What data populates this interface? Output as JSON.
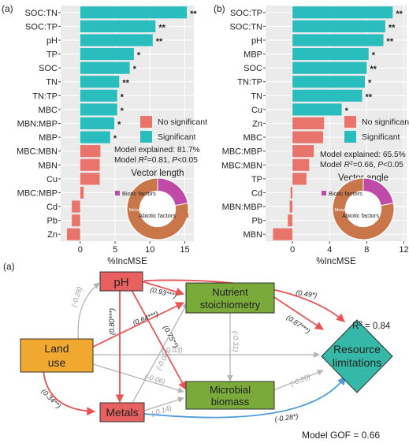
{
  "chart_data": [
    {
      "type": "bar",
      "panel_label": "(a)",
      "orientation": "horizontal",
      "categories": [
        "SOC:TN",
        "SOC:TP",
        "pH",
        "TP",
        "SOC",
        "TN",
        "TN:TP",
        "MBC",
        "MBN:MBP",
        "MBP",
        "MBC:MBN",
        "MBN",
        "Cu",
        "MBC:MBP",
        "Cd",
        "Pb",
        "Zn"
      ],
      "values": [
        15.3,
        10.8,
        10.4,
        7.7,
        7.1,
        5.6,
        5.3,
        5.3,
        4.9,
        4.3,
        2.9,
        2.8,
        2.8,
        0.5,
        -1.2,
        -1.2,
        -1.9
      ],
      "significance": [
        "**",
        "**",
        "**",
        "*",
        "*",
        "**",
        "*",
        "*",
        "*",
        "*",
        "",
        "",
        "",
        "",
        "",
        "",
        ""
      ],
      "xlabel": "%IncMSE",
      "xlim": [
        -2.8,
        16.3
      ],
      "xticks": [
        0,
        5,
        10,
        15
      ],
      "legend": {
        "items": [
          {
            "label": "No significant",
            "color": "#e8746c"
          },
          {
            "label": "Significant",
            "color": "#29bdbd"
          }
        ]
      },
      "annotation": {
        "line1": "Model explained: 81.7%",
        "line2_prefix": "Model ",
        "line2_r": "R",
        "line2_sup": "2",
        "line2_rest": "=0.81, ",
        "line2_p": "P",
        "line2_end": "<0.05"
      },
      "donut": {
        "title": "Vector length",
        "slices": [
          {
            "label": "Biotic factors",
            "value": 0.22,
            "color": "#c04aa8"
          },
          {
            "label": "Abiotic factors",
            "value": 0.78,
            "color": "#c8764a"
          }
        ],
        "inner_label": "Metals"
      },
      "colors": {
        "significant": "#29bdbd",
        "not_significant": "#e8746c"
      }
    },
    {
      "type": "bar",
      "panel_label": "(b)",
      "orientation": "horizontal",
      "categories": [
        "SOC:TP",
        "SOC:TN",
        "pH",
        "MBP",
        "SOC",
        "TN:TP",
        "TN",
        "Cu",
        "Zn",
        "MBC",
        "MBC:MBP",
        "MBC:MBN",
        "TP",
        "Cd",
        "MBN:MBP",
        "Pb",
        "MBN"
      ],
      "values": [
        10.8,
        10.0,
        9.8,
        8.2,
        8.0,
        7.8,
        7.5,
        5.3,
        3.4,
        3.3,
        2.3,
        1.8,
        1.5,
        -0.2,
        -0.3,
        -0.5,
        -2.1
      ],
      "significance": [
        "**",
        "**",
        "**",
        "*",
        "**",
        "*",
        "**",
        "*",
        "",
        "",
        "",
        "",
        "",
        "",
        "",
        "",
        ""
      ],
      "xlabel": "%IncMSE",
      "xlim": [
        -2.9,
        12.3
      ],
      "xticks": [
        0,
        4,
        8,
        12
      ],
      "legend": {
        "items": [
          {
            "label": "No significant",
            "color": "#e8746c"
          },
          {
            "label": "Significant",
            "color": "#29bdbd"
          }
        ]
      },
      "annotation": {
        "line1": "Model explained: 65.5%",
        "line2_prefix": "Model ",
        "line2_r": "R",
        "line2_sup": "2",
        "line2_rest": "=0.66, ",
        "line2_p": "P",
        "line2_end": "<0.05"
      },
      "donut": {
        "title": "Vector angle",
        "slices": [
          {
            "label": "Biotic factors",
            "value": 0.22,
            "color": "#c04aa8"
          },
          {
            "label": "Abiotic factors",
            "value": 0.78,
            "color": "#c8764a"
          }
        ],
        "inner_label": "Metals"
      },
      "colors": {
        "significant": "#29bdbd",
        "not_significant": "#e8746c"
      }
    },
    {
      "type": "diagram",
      "panel_label": "(a)",
      "nodes": {
        "land_use": {
          "label_line1": "Land",
          "label_line2": "use",
          "color": "#f0a830"
        },
        "ph": {
          "label": "pH",
          "color": "#e86060"
        },
        "metals": {
          "label": "Metals",
          "color": "#e86060"
        },
        "nutrient": {
          "label_line1": "Nutrient",
          "label_line2": "stoichiometry",
          "color": "#7aaa3a"
        },
        "microbial": {
          "label_line1": "Microbial",
          "label_line2": "biomass",
          "color": "#7aaa3a"
        },
        "resource": {
          "label_line1": "Resource",
          "label_line2": "limitations",
          "color": "#35b8a8"
        }
      },
      "paths": {
        "land_ph": "(-0.28)",
        "land_nutrient": "(0.64***)",
        "land_metals": "(0.34**)",
        "land_microbial": "(-0.06)",
        "land_resource": "(-0.03)",
        "ph_metals": "(0.80***)",
        "ph_nutrient": "(0.93***)",
        "ph_microbial": "(0.75**)",
        "ph_resource": "(0.49*)",
        "metals_nutrient": "(-0.08)",
        "metals_microbial": "(-0.14)",
        "metals_resource": "(-0.28*)",
        "nutrient_microbial": "(-0.31)",
        "nutrient_resource": "(0.87***)",
        "microbial_resource": "(-0.20)"
      },
      "r2_prefix": "R",
      "r2_sup": "2",
      "r2_value": " = 0.84",
      "gof": "Model GOF = 0.66"
    }
  ]
}
